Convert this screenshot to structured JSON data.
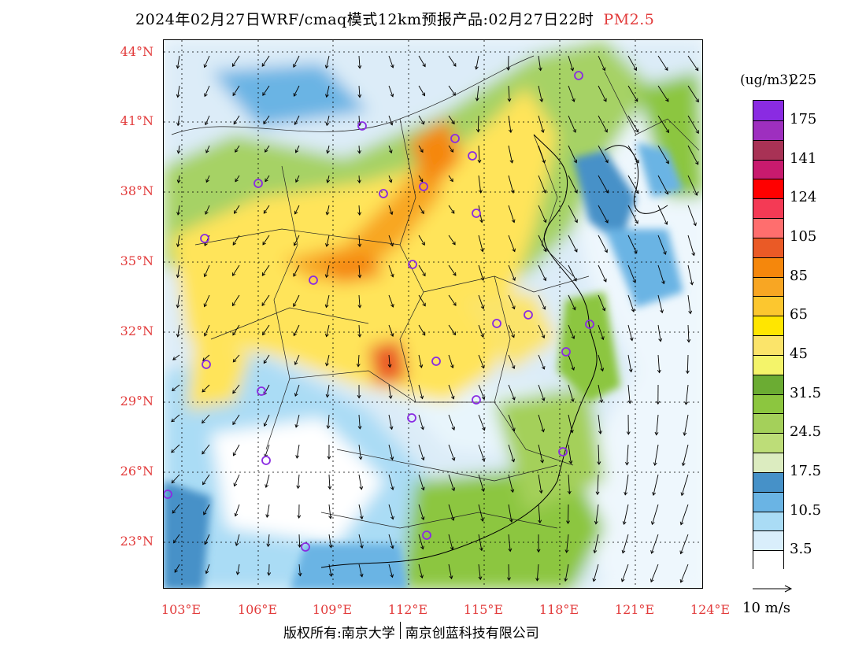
{
  "title": {
    "main": "2024年02月27日WRF/cmaq模式12km预报产品:02月27日22时",
    "species": "PM2.5"
  },
  "map": {
    "lat_labels": [
      "44°N",
      "41°N",
      "38°N",
      "35°N",
      "32°N",
      "29°N",
      "26°N",
      "23°N"
    ],
    "lon_labels": [
      "103°E",
      "106°E",
      "109°E",
      "112°E",
      "115°E",
      "118°E",
      "121°E",
      "124°E"
    ],
    "region": "China, 103°E–124°E, 21°N–44°N",
    "overlay": "wind vectors",
    "markers": "city stations (purple circles)"
  },
  "colorbar": {
    "unit": "(ug/m3)",
    "colors": [
      "#ffffff",
      "#d9eefb",
      "#aadcf5",
      "#6ab4e4",
      "#4691c8",
      "#dcecc0",
      "#bddd78",
      "#a4d05a",
      "#8cc63f",
      "#6bac33",
      "#f4f46a",
      "#fbe46a",
      "#ffe600",
      "#fcc72f",
      "#f8a623",
      "#f5870c",
      "#ea5a26",
      "#ff6e6e",
      "#f43a55",
      "#ff0000",
      "#c81a6e",
      "#a83255",
      "#9e2fbf",
      "#8a2be2"
    ],
    "labels": [
      "3.5",
      "10.5",
      "17.5",
      "24.5",
      "31.5",
      "45",
      "65",
      "85",
      "105",
      "124",
      "141",
      "175",
      "225"
    ]
  },
  "reference_vector": {
    "label": "10 m/s"
  },
  "footer": {
    "left": "版权所有:南京大学",
    "right": "南京创蓝科技有限公司"
  }
}
